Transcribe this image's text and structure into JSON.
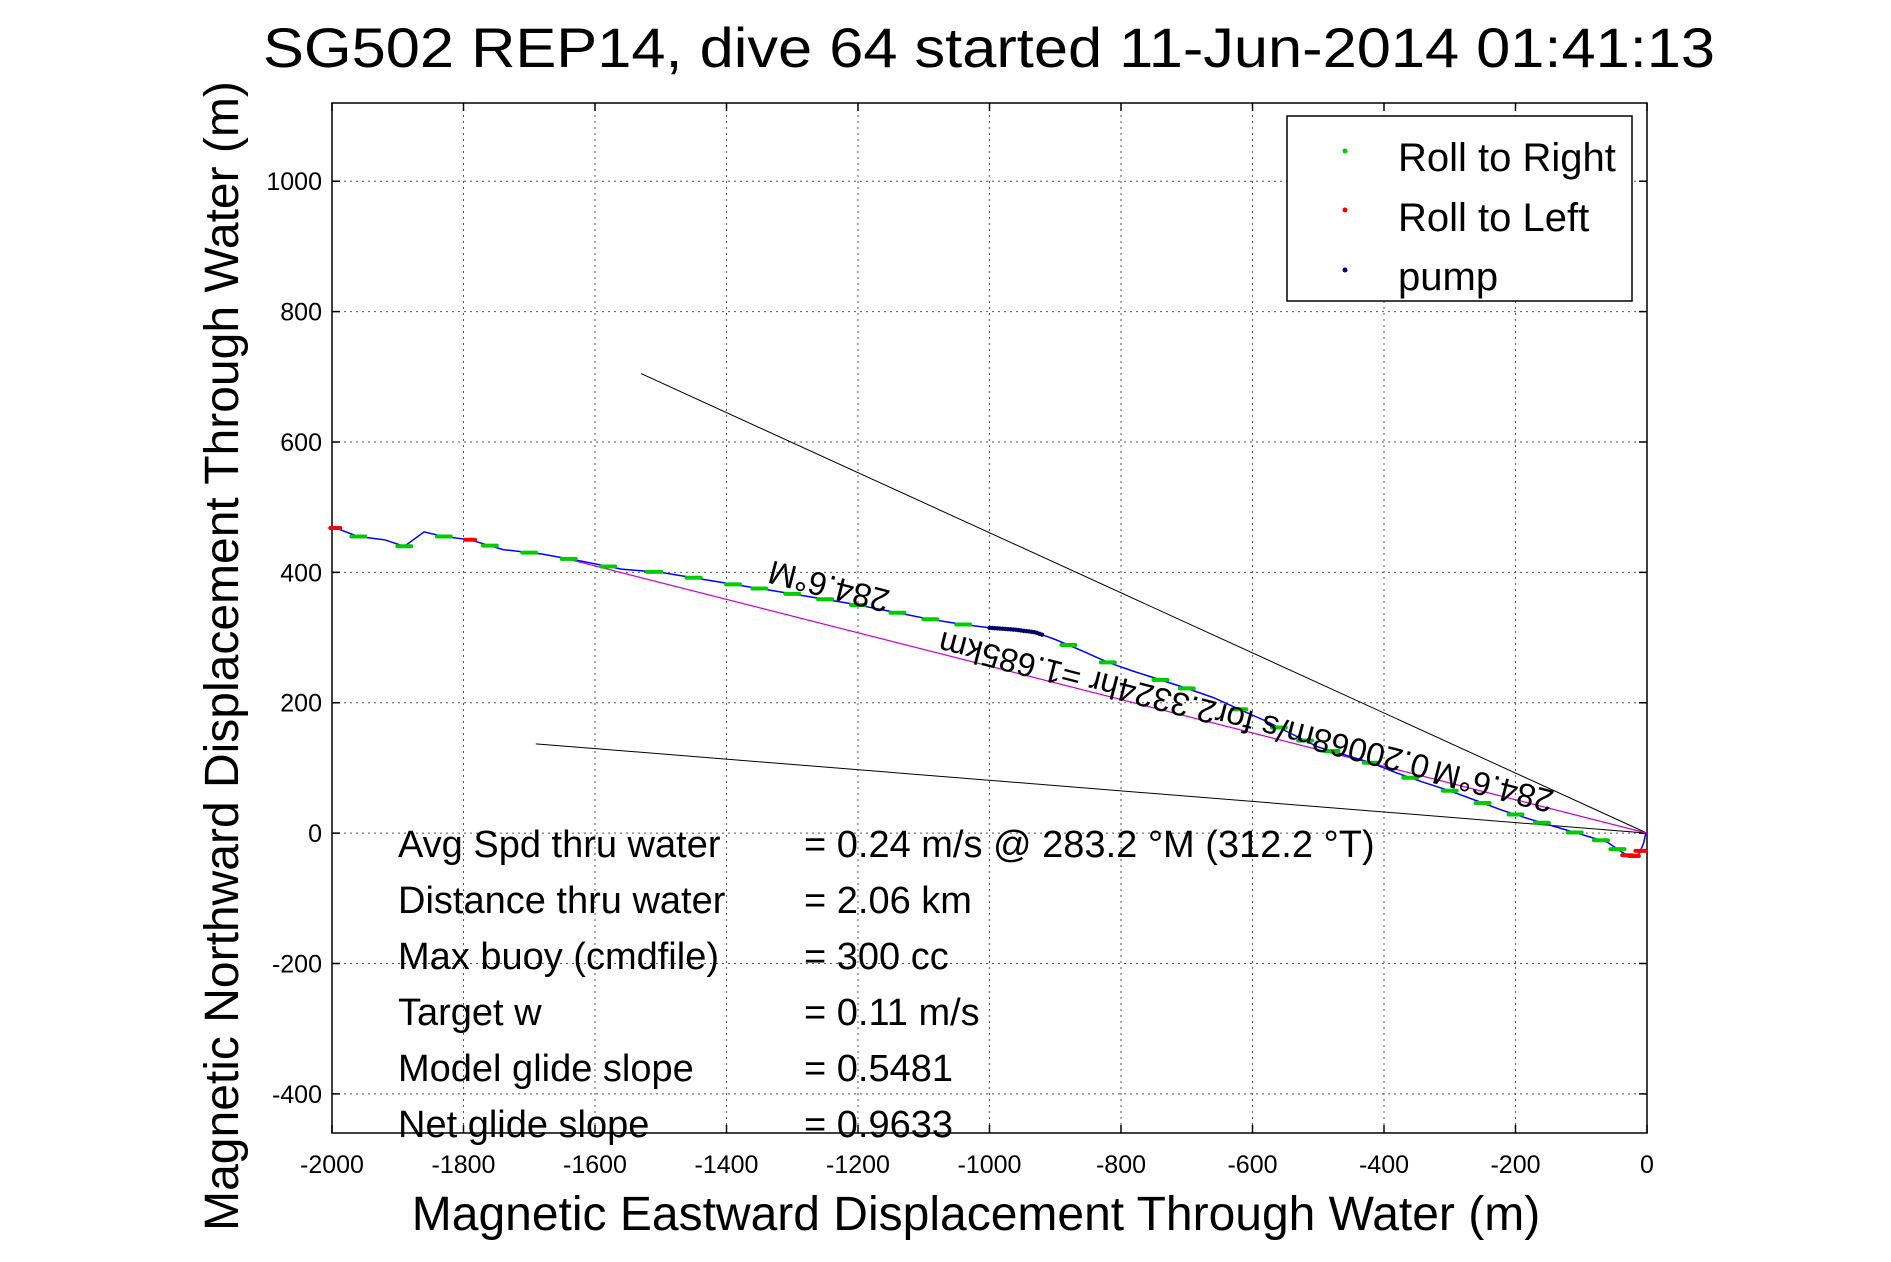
{
  "chart_data": {
    "type": "line",
    "title": "SG502 REP14, dive 64 started 11-Jun-2014 01:41:13",
    "xlabel": "Magnetic Eastward Displacement Through Water (m)",
    "ylabel": "Magnetic Northward Displacement Through Water (m)",
    "xlim": [
      -2000,
      0
    ],
    "ylim": [
      -460,
      1120
    ],
    "xticks": [
      -2000,
      -1800,
      -1600,
      -1400,
      -1200,
      -1000,
      -800,
      -600,
      -400,
      -200,
      0
    ],
    "yticks": [
      -400,
      -200,
      0,
      200,
      400,
      600,
      800,
      1000
    ],
    "x_tick_labels": [
      "-2000",
      "-1800",
      "-1600",
      "-1400",
      "-1200",
      "-1000",
      "-800",
      "-600",
      "-400",
      "-200",
      "0"
    ],
    "y_tick_labels": [
      "-400",
      "-200",
      "0",
      "200",
      "400",
      "600",
      "800",
      "1000"
    ],
    "grid": true,
    "legend_position": "top-right",
    "legend": [
      {
        "label": "Roll to Right",
        "color": "#00cc00"
      },
      {
        "label": "Roll to Left",
        "color": "#ff0000"
      },
      {
        "label": "pump",
        "color": "#000066"
      }
    ],
    "track": {
      "color": "#0000ff",
      "points": [
        [
          -2000,
          470
        ],
        [
          -1960,
          455
        ],
        [
          -1920,
          450
        ],
        [
          -1890,
          440
        ],
        [
          -1860,
          462
        ],
        [
          -1830,
          455
        ],
        [
          -1790,
          450
        ],
        [
          -1740,
          435
        ],
        [
          -1680,
          428
        ],
        [
          -1620,
          417
        ],
        [
          -1560,
          405
        ],
        [
          -1500,
          400
        ],
        [
          -1440,
          390
        ],
        [
          -1380,
          380
        ],
        [
          -1330,
          372
        ],
        [
          -1270,
          362
        ],
        [
          -1210,
          352
        ],
        [
          -1150,
          340
        ],
        [
          -1090,
          328
        ],
        [
          -1040,
          320
        ],
        [
          -1000,
          315
        ],
        [
          -960,
          312
        ],
        [
          -930,
          308
        ],
        [
          -900,
          297
        ],
        [
          -860,
          280
        ],
        [
          -820,
          262
        ],
        [
          -780,
          248
        ],
        [
          -740,
          235
        ],
        [
          -700,
          222
        ],
        [
          -660,
          208
        ],
        [
          -620,
          190
        ],
        [
          -580,
          172
        ],
        [
          -540,
          152
        ],
        [
          -500,
          132
        ],
        [
          -460,
          120
        ],
        [
          -420,
          108
        ],
        [
          -380,
          92
        ],
        [
          -340,
          78
        ],
        [
          -300,
          65
        ],
        [
          -260,
          50
        ],
        [
          -220,
          35
        ],
        [
          -180,
          22
        ],
        [
          -140,
          10
        ],
        [
          -100,
          -2
        ],
        [
          -60,
          -14
        ],
        [
          -40,
          -28
        ],
        [
          -25,
          -37
        ],
        [
          -12,
          -32
        ],
        [
          -5,
          -15
        ],
        [
          -2,
          0
        ]
      ],
      "roll_right_x": [
        -1960,
        -1890,
        -1830,
        -1760,
        -1700,
        -1640,
        -1580,
        -1510,
        -1450,
        -1390,
        -1350,
        -1300,
        -1250,
        -1200,
        -1140,
        -1090,
        -1040,
        -880,
        -820,
        -740,
        -700,
        -620,
        -560,
        -520,
        -480,
        -420,
        -360,
        -300,
        -250,
        -200,
        -160,
        -110,
        -70,
        -45
      ],
      "roll_left_x": [
        -1995,
        -1790,
        -30,
        -20,
        -10
      ],
      "pump_x_range": [
        -1000,
        -920
      ]
    },
    "heading_line": {
      "color": "#cc00cc",
      "from": [
        0,
        0
      ],
      "to": [
        -1640,
        420
      ]
    },
    "bound_lines": [
      {
        "from": [
          0,
          0
        ],
        "to": [
          -1530,
          705
        ]
      },
      {
        "from": [
          0,
          0
        ],
        "to": [
          -1690,
          137
        ]
      }
    ],
    "annotations": [
      {
        "text": "284.6°M",
        "x": -1240,
        "y": 395,
        "angle": 194.4
      },
      {
        "text": "0.20068m/s for2.3324hr =1.685km",
        "x": -700,
        "y": 213,
        "angle": 194.4
      },
      {
        "text": "284.6°M",
        "x": -230,
        "y": 88,
        "angle": 194.4
      }
    ]
  },
  "stats": [
    {
      "label": "Avg Spd thru water",
      "value": "=  0.24 m/s @ 283.2 °M (312.2 °T)"
    },
    {
      "label": "Distance thru water",
      "value": "=  2.06 km"
    },
    {
      "label": "Max buoy (cmdfile)",
      "value": "= 300 cc"
    },
    {
      "label": "Target w",
      "value": "= 0.11 m/s"
    },
    {
      "label": "Model glide slope",
      "value": "= 0.5481"
    },
    {
      "label": "Net glide slope",
      "value": "= 0.9633"
    }
  ]
}
